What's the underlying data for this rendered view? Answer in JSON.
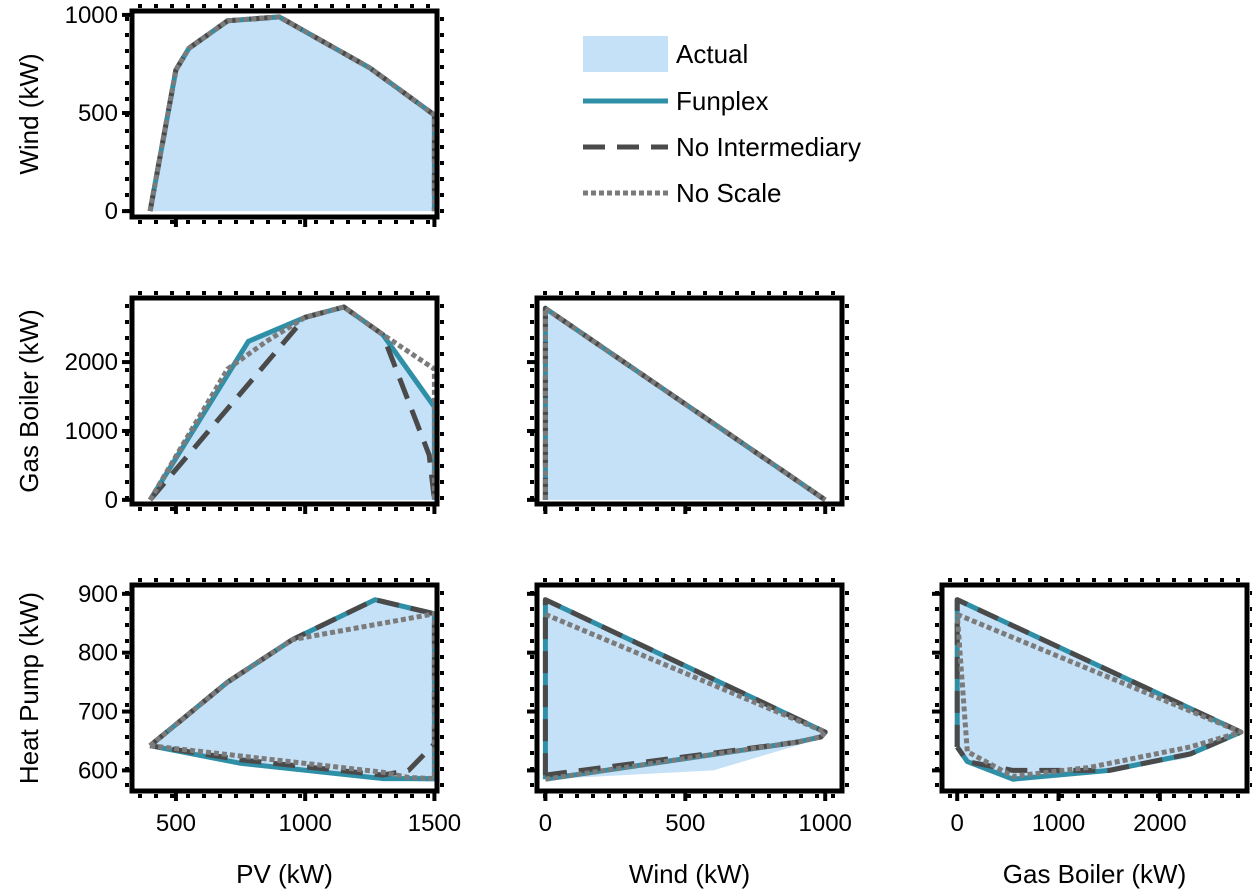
{
  "legend": {
    "placement": "top-right",
    "entries": [
      {
        "label": "Actual",
        "style": "fill",
        "color": "#c5e1f7"
      },
      {
        "label": "Funplex",
        "style": "solid",
        "color": "#2e8fa7"
      },
      {
        "label": "No Intermediary",
        "style": "dashed",
        "color": "#4a4a4a"
      },
      {
        "label": "No Scale",
        "style": "dotted",
        "color": "#7b7b7b"
      }
    ]
  },
  "chart_data": [
    {
      "type": "area",
      "id": "pv-wind",
      "xlabel": "",
      "ylabel": "Wind (kW)",
      "xlim": [
        330,
        1510
      ],
      "ylim": [
        -30,
        1020
      ],
      "xticks": [
        500,
        1000,
        1500
      ],
      "xtick_labels": [],
      "yticks": [
        0,
        500,
        1000
      ],
      "ytick_labels": [
        "0",
        "500",
        "1000"
      ],
      "series": [
        {
          "name": "Actual",
          "points": [
            [
              400,
              0
            ],
            [
              500,
              720
            ],
            [
              550,
              830
            ],
            [
              700,
              970
            ],
            [
              900,
              990
            ],
            [
              1250,
              730
            ],
            [
              1500,
              490
            ],
            [
              1500,
              0
            ]
          ]
        },
        {
          "name": "Funplex",
          "points": [
            [
              400,
              0
            ],
            [
              500,
              720
            ],
            [
              550,
              830
            ],
            [
              700,
              970
            ],
            [
              900,
              990
            ],
            [
              1250,
              730
            ],
            [
              1500,
              490
            ],
            [
              1500,
              0
            ]
          ]
        },
        {
          "name": "No Intermediary",
          "points": [
            [
              400,
              0
            ],
            [
              500,
              720
            ],
            [
              550,
              830
            ],
            [
              700,
              970
            ],
            [
              900,
              990
            ],
            [
              1250,
              730
            ],
            [
              1500,
              490
            ],
            [
              1500,
              0
            ]
          ]
        },
        {
          "name": "No Scale",
          "points": [
            [
              400,
              0
            ],
            [
              500,
              720
            ],
            [
              550,
              830
            ],
            [
              700,
              970
            ],
            [
              900,
              990
            ],
            [
              1250,
              730
            ],
            [
              1500,
              490
            ],
            [
              1500,
              0
            ]
          ]
        }
      ]
    },
    {
      "type": "area",
      "id": "pv-gas",
      "xlabel": "",
      "ylabel": "Gas Boiler (kW)",
      "xlim": [
        330,
        1510
      ],
      "ylim": [
        -60,
        2930
      ],
      "xticks": [
        500,
        1000,
        1500
      ],
      "xtick_labels": [],
      "yticks": [
        0,
        1000,
        2000
      ],
      "ytick_labels": [
        "0",
        "1000",
        "2000"
      ],
      "series": [
        {
          "name": "Actual",
          "points": [
            [
              400,
              0
            ],
            [
              780,
              2300
            ],
            [
              1000,
              2650
            ],
            [
              1150,
              2800
            ],
            [
              1300,
              2400
            ],
            [
              1500,
              1350
            ],
            [
              1500,
              0
            ]
          ]
        },
        {
          "name": "Funplex",
          "points": [
            [
              400,
              0
            ],
            [
              780,
              2300
            ],
            [
              1000,
              2650
            ],
            [
              1150,
              2800
            ],
            [
              1300,
              2400
            ],
            [
              1500,
              1350
            ],
            [
              1500,
              0
            ]
          ]
        },
        {
          "name": "No Intermediary",
          "points": [
            [
              400,
              0
            ],
            [
              1000,
              2650
            ],
            [
              1150,
              2800
            ],
            [
              1300,
              2400
            ],
            [
              1480,
              650
            ],
            [
              1500,
              0
            ]
          ]
        },
        {
          "name": "No Scale",
          "points": [
            [
              400,
              0
            ],
            [
              700,
              1900
            ],
            [
              850,
              2300
            ],
            [
              1000,
              2650
            ],
            [
              1150,
              2800
            ],
            [
              1300,
              2400
            ],
            [
              1500,
              1900
            ],
            [
              1500,
              0
            ]
          ]
        }
      ]
    },
    {
      "type": "area",
      "id": "wind-gas",
      "xlabel": "",
      "ylabel": "",
      "xlim": [
        -30,
        1060
      ],
      "ylim": [
        -60,
        2930
      ],
      "xticks": [
        0,
        500,
        1000
      ],
      "xtick_labels": [],
      "yticks": [
        0,
        1000,
        2000
      ],
      "ytick_labels": [],
      "series": [
        {
          "name": "Actual",
          "points": [
            [
              0,
              0
            ],
            [
              0,
              2780
            ],
            [
              1000,
              0
            ]
          ]
        },
        {
          "name": "Funplex",
          "points": [
            [
              0,
              0
            ],
            [
              0,
              2780
            ],
            [
              1000,
              0
            ]
          ]
        },
        {
          "name": "No Intermediary",
          "points": [
            [
              0,
              0
            ],
            [
              0,
              2780
            ],
            [
              1000,
              0
            ]
          ]
        },
        {
          "name": "No Scale",
          "points": [
            [
              0,
              0
            ],
            [
              0,
              2780
            ],
            [
              1000,
              0
            ]
          ]
        }
      ]
    },
    {
      "type": "area",
      "id": "pv-hp",
      "xlabel": "PV (kW)",
      "ylabel": "Heat Pump (kW)",
      "xlim": [
        330,
        1510
      ],
      "ylim": [
        565,
        915
      ],
      "xticks": [
        500,
        1000,
        1500
      ],
      "xtick_labels": [
        "500",
        "1000",
        "1500"
      ],
      "yticks": [
        600,
        700,
        800,
        900
      ],
      "ytick_labels": [
        "600",
        "700",
        "800",
        "900"
      ],
      "series": [
        {
          "name": "Actual",
          "points": [
            [
              400,
              642
            ],
            [
              700,
              750
            ],
            [
              950,
              822
            ],
            [
              1270,
              890
            ],
            [
              1500,
              866
            ],
            [
              1500,
              580
            ],
            [
              1300,
              584
            ],
            [
              750,
              610
            ],
            [
              400,
              642
            ]
          ]
        },
        {
          "name": "Funplex",
          "points": [
            [
              400,
              642
            ],
            [
              700,
              750
            ],
            [
              950,
              822
            ],
            [
              1270,
              890
            ],
            [
              1500,
              866
            ],
            [
              1500,
              586
            ],
            [
              1300,
              586
            ],
            [
              750,
              612
            ],
            [
              400,
              642
            ]
          ]
        },
        {
          "name": "No Intermediary",
          "points": [
            [
              400,
              642
            ],
            [
              700,
              750
            ],
            [
              950,
              822
            ],
            [
              1270,
              890
            ],
            [
              1500,
              866
            ],
            [
              1500,
              645
            ],
            [
              1400,
              600
            ],
            [
              1300,
              592
            ],
            [
              750,
              618
            ],
            [
              400,
              642
            ]
          ]
        },
        {
          "name": "No Scale",
          "points": [
            [
              400,
              642
            ],
            [
              700,
              750
            ],
            [
              950,
              822
            ],
            [
              1500,
              866
            ],
            [
              1500,
              586
            ],
            [
              1400,
              588
            ],
            [
              1300,
              597
            ],
            [
              400,
              642
            ]
          ]
        }
      ]
    },
    {
      "type": "area",
      "id": "wind-hp",
      "xlabel": "Wind (kW)",
      "ylabel": "",
      "xlim": [
        -30,
        1060
      ],
      "ylim": [
        565,
        915
      ],
      "xticks": [
        0,
        500,
        1000
      ],
      "xtick_labels": [
        "0",
        "500",
        "1000"
      ],
      "yticks": [
        600,
        700,
        800,
        900
      ],
      "ytick_labels": [],
      "series": [
        {
          "name": "Actual",
          "points": [
            [
              0,
              585
            ],
            [
              0,
              890
            ],
            [
              1000,
              665
            ],
            [
              990,
              655
            ],
            [
              600,
              600
            ],
            [
              0,
              585
            ]
          ]
        },
        {
          "name": "Funplex",
          "points": [
            [
              0,
              585
            ],
            [
              0,
              890
            ],
            [
              1000,
              665
            ],
            [
              985,
              657
            ],
            [
              900,
              648
            ],
            [
              0,
              585
            ]
          ]
        },
        {
          "name": "No Intermediary",
          "points": [
            [
              0,
              592
            ],
            [
              0,
              890
            ],
            [
              1000,
              665
            ],
            [
              985,
              657
            ],
            [
              900,
              648
            ],
            [
              0,
              592
            ]
          ]
        },
        {
          "name": "No Scale",
          "points": [
            [
              0,
              865
            ],
            [
              1000,
              665
            ],
            [
              985,
              657
            ],
            [
              900,
              648
            ],
            [
              0,
              585
            ]
          ]
        }
      ]
    },
    {
      "type": "area",
      "id": "gas-hp",
      "xlabel": "Gas Boiler (kW)",
      "ylabel": "",
      "xlim": [
        -150,
        2860
      ],
      "ylim": [
        565,
        915
      ],
      "xticks": [
        0,
        1000,
        2000
      ],
      "xtick_labels": [
        "0",
        "1000",
        "2000"
      ],
      "yticks": [
        600,
        700,
        800,
        900
      ],
      "ytick_labels": [],
      "series": [
        {
          "name": "Actual",
          "points": [
            [
              0,
              640
            ],
            [
              0,
              890
            ],
            [
              2800,
              665
            ],
            [
              2250,
              620
            ],
            [
              1500,
              598
            ],
            [
              550,
              585
            ],
            [
              100,
              615
            ],
            [
              0,
              640
            ]
          ]
        },
        {
          "name": "Funplex",
          "points": [
            [
              0,
              640
            ],
            [
              0,
              890
            ],
            [
              2800,
              665
            ],
            [
              2300,
              628
            ],
            [
              1500,
              600
            ],
            [
              550,
              585
            ],
            [
              100,
              615
            ],
            [
              0,
              640
            ]
          ]
        },
        {
          "name": "No Intermediary",
          "points": [
            [
              0,
              640
            ],
            [
              0,
              890
            ],
            [
              2800,
              665
            ],
            [
              2300,
              628
            ],
            [
              1500,
              600
            ],
            [
              550,
              600
            ],
            [
              100,
              615
            ],
            [
              0,
              640
            ]
          ]
        },
        {
          "name": "No Scale",
          "points": [
            [
              0,
              865
            ],
            [
              2800,
              665
            ],
            [
              2300,
              640
            ],
            [
              1300,
              605
            ],
            [
              550,
              590
            ],
            [
              100,
              632
            ],
            [
              0,
              865
            ]
          ]
        }
      ]
    }
  ]
}
